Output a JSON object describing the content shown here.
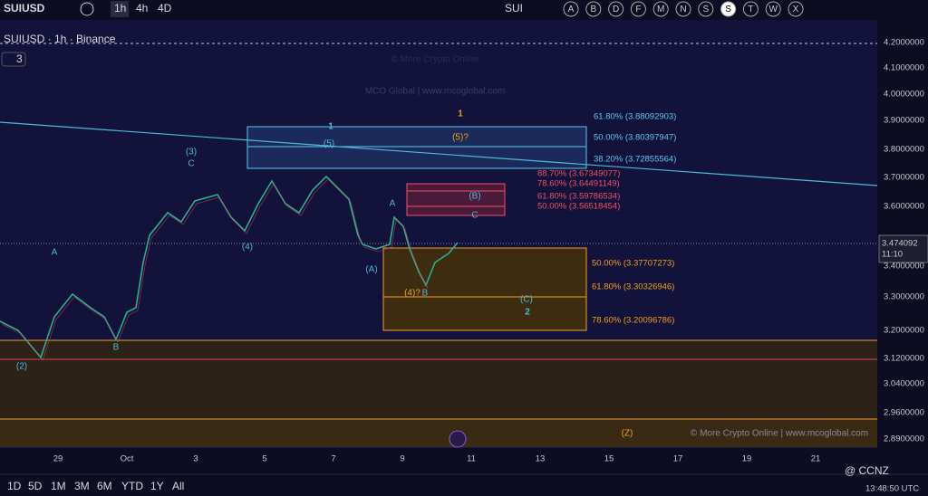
{
  "toolbar": {
    "symbol": "SUIUSD",
    "intervals": [
      "1h",
      "4h",
      "4D"
    ],
    "ticker": "SUI",
    "letters": [
      "A",
      "B",
      "D",
      "F",
      "M",
      "N",
      "S",
      "S",
      "T",
      "W",
      "X"
    ]
  },
  "legend": {
    "title": "SUIUSD · 1h · Binance",
    "count": "3"
  },
  "watermark": {
    "main": "© More Crypto Online",
    "sub": "MCO Global  |  www.mcoglobal.com",
    "footer": "© More Crypto Online  |  www.mcoglobal.com"
  },
  "price_axis": {
    "labels": [
      "4.2000000",
      "4.1000000",
      "4.0000000",
      "3.9000000",
      "3.8000000",
      "3.7000000",
      "3.6000000",
      "3.4000000",
      "3.3000000",
      "3.2000000",
      "3.1200000",
      "3.0400000",
      "2.9600000",
      "2.8900000"
    ],
    "current": "3.474092",
    "countdown": "11:10"
  },
  "fib_levels": {
    "cyan": [
      "61.80% (3.88092903)",
      "50.00% (3.80397947)",
      "38.20% (3.72855564)"
    ],
    "red": [
      "88.70% (3.67349077)",
      "78.60% (3.64491149)",
      "61.80% (3.59786534)",
      "50.00% (3.56518454)"
    ],
    "orange": [
      "50.00% (3.37707273)",
      "61.80% (3.30326946)",
      "78.60% (3.20096786)"
    ]
  },
  "wave_labels": [
    "(2)",
    "A",
    "B",
    "(3)",
    "C",
    "(4)",
    "1",
    "(5)",
    "A",
    "(A)",
    "(4)?",
    "B",
    "(B)",
    "C",
    "(C)",
    "2",
    "1",
    "(5)?",
    "(Z)"
  ],
  "date_axis": [
    "29",
    "Oct",
    "3",
    "5",
    "7",
    "9",
    "11",
    "13",
    "15",
    "17",
    "19",
    "21"
  ],
  "bottom_bar": {
    "ranges": [
      "1D",
      "5D",
      "1M",
      "3M",
      "6M",
      "YTD",
      "1Y",
      "All"
    ],
    "clock": "13:48:50 UTC",
    "brand": "@ CCNZ"
  }
}
